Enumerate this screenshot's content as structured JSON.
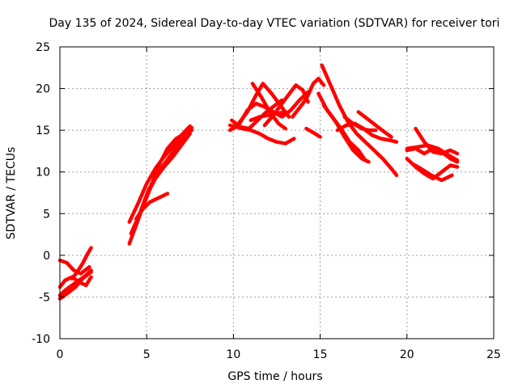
{
  "chart_data": {
    "type": "line",
    "title": "Day 135 of 2024, Sidereal Day-to-day VTEC variation (SDTVAR) for receiver tori",
    "xlabel": "GPS time / hours",
    "ylabel": "SDTVAR / TECUs",
    "xlim": [
      0,
      25
    ],
    "ylim": [
      -10,
      25
    ],
    "xticks": [
      0,
      5,
      10,
      15,
      20,
      25
    ],
    "yticks": [
      -10,
      -5,
      0,
      5,
      10,
      15,
      20,
      25
    ],
    "xtick_labels": [
      "0",
      "5",
      "10",
      "15",
      "20",
      "25"
    ],
    "ytick_labels": [
      "-10",
      "-5",
      "0",
      "5",
      "10",
      "15",
      "20",
      "25"
    ],
    "grid": true,
    "color": "#ff0000",
    "series": [
      {
        "x": [
          0.0,
          0.4,
          0.9,
          1.3,
          1.8
        ],
        "y": [
          -5.2,
          -4.6,
          -3.8,
          -2.8,
          -2.0
        ]
      },
      {
        "x": [
          0.0,
          0.3,
          0.7,
          1.1,
          1.5,
          1.8
        ],
        "y": [
          -3.8,
          -3.0,
          -2.6,
          -3.2,
          -3.6,
          -2.6
        ]
      },
      {
        "x": [
          0.0,
          0.3,
          0.7,
          1.1,
          1.5,
          1.8
        ],
        "y": [
          -4.8,
          -4.2,
          -3.6,
          -3.0,
          -2.4,
          -1.8
        ]
      },
      {
        "x": [
          0.0,
          0.4,
          0.8,
          1.2,
          1.7
        ],
        "y": [
          -0.6,
          -0.9,
          -1.8,
          -2.2,
          -1.4
        ]
      },
      {
        "x": [
          0.7,
          1.0,
          1.3,
          1.6,
          1.8
        ],
        "y": [
          -2.8,
          -2.0,
          -1.0,
          0.2,
          0.9
        ]
      },
      {
        "x": [
          4.0,
          4.5,
          5.0,
          5.5,
          6.0,
          6.5,
          7.0,
          7.5
        ],
        "y": [
          1.4,
          4.2,
          7.2,
          9.2,
          10.6,
          11.8,
          13.2,
          14.6
        ]
      },
      {
        "x": [
          4.1,
          4.6,
          5.1,
          5.6,
          6.1,
          6.6,
          7.1,
          7.6
        ],
        "y": [
          2.6,
          5.0,
          7.8,
          9.8,
          11.2,
          12.6,
          14.0,
          15.3
        ]
      },
      {
        "x": [
          4.0,
          4.5,
          5.0,
          5.5,
          6.0,
          6.5,
          7.0,
          7.5
        ],
        "y": [
          4.0,
          6.2,
          8.6,
          10.4,
          11.8,
          13.0,
          14.4,
          15.5
        ]
      },
      {
        "x": [
          4.2,
          4.7,
          5.2,
          5.7,
          6.2,
          6.7,
          7.2,
          7.6
        ],
        "y": [
          3.0,
          5.4,
          8.0,
          10.8,
          12.8,
          14.0,
          14.6,
          15.0
        ]
      },
      {
        "x": [
          4.4,
          4.8,
          5.2,
          5.6,
          6.0,
          6.2
        ],
        "y": [
          4.4,
          5.6,
          6.4,
          6.8,
          7.2,
          7.4
        ]
      },
      {
        "x": [
          9.8,
          10.3,
          10.8,
          11.3,
          11.8,
          12.3,
          12.8,
          13.3,
          13.8,
          14.3
        ],
        "y": [
          15.0,
          15.6,
          17.4,
          18.2,
          17.8,
          17.2,
          16.6,
          17.4,
          18.6,
          19.6
        ]
      },
      {
        "x": [
          9.8,
          10.5,
          11.0,
          11.5,
          12.0,
          12.5,
          13.0,
          13.5
        ],
        "y": [
          15.6,
          15.2,
          15.0,
          14.6,
          14.0,
          13.6,
          13.4,
          14.0
        ]
      },
      {
        "x": [
          9.9,
          10.4,
          10.9,
          11.4,
          11.9,
          12.4,
          12.8
        ],
        "y": [
          16.2,
          15.4,
          15.2,
          16.2,
          17.2,
          18.0,
          18.6
        ]
      },
      {
        "x": [
          10.3,
          10.8,
          11.3,
          11.7,
          12.2,
          12.7,
          13.2
        ],
        "y": [
          15.8,
          17.2,
          19.2,
          20.6,
          19.4,
          18.0,
          16.6
        ]
      },
      {
        "x": [
          11.1,
          11.6,
          12.1,
          12.6,
          13.0
        ],
        "y": [
          20.6,
          19.0,
          17.2,
          15.8,
          15.2
        ]
      },
      {
        "x": [
          11.8,
          12.3,
          12.8,
          13.3,
          13.6,
          14.0,
          14.3
        ],
        "y": [
          15.6,
          16.8,
          18.2,
          19.6,
          20.4,
          19.8,
          18.4
        ]
      },
      {
        "x": [
          11.0,
          11.5,
          12.0,
          12.5,
          13.0
        ],
        "y": [
          16.2,
          16.6,
          16.8,
          17.0,
          17.2
        ]
      },
      {
        "x": [
          13.4,
          13.7,
          14.0,
          14.3,
          14.6,
          14.9,
          15.2
        ],
        "y": [
          16.6,
          17.4,
          18.2,
          19.2,
          20.6,
          21.2,
          20.4
        ]
      },
      {
        "x": [
          14.2,
          14.7,
          15.0
        ],
        "y": [
          15.2,
          14.6,
          14.2
        ]
      },
      {
        "x": [
          15.1,
          15.6,
          16.1,
          16.6,
          17.1,
          17.6,
          18.1,
          18.6,
          19.1,
          19.4
        ],
        "y": [
          22.8,
          20.4,
          18.0,
          16.0,
          14.6,
          13.6,
          12.6,
          11.6,
          10.4,
          9.6
        ]
      },
      {
        "x": [
          14.9,
          15.4,
          15.9,
          16.4,
          16.9,
          17.4,
          17.8
        ],
        "y": [
          19.4,
          17.4,
          16.0,
          14.2,
          12.6,
          11.6,
          11.2
        ]
      },
      {
        "x": [
          15.2,
          15.7,
          16.2,
          16.7,
          17.2,
          17.6
        ],
        "y": [
          18.0,
          16.6,
          15.2,
          13.6,
          12.6,
          11.4
        ]
      },
      {
        "x": [
          16.0,
          16.5,
          17.0,
          17.5,
          18.0,
          18.5,
          19.0,
          19.4
        ],
        "y": [
          15.0,
          15.6,
          15.8,
          15.2,
          14.4,
          14.0,
          13.8,
          13.6
        ]
      },
      {
        "x": [
          17.2,
          17.7,
          18.2,
          18.7,
          19.1
        ],
        "y": [
          17.2,
          16.4,
          15.6,
          14.8,
          14.2
        ]
      },
      {
        "x": [
          16.4,
          16.9,
          17.4,
          17.8,
          18.2
        ],
        "y": [
          16.6,
          15.8,
          15.2,
          15.0,
          15.0
        ]
      },
      {
        "x": [
          20.0,
          20.5,
          21.0,
          21.5,
          22.0,
          22.5,
          22.9
        ],
        "y": [
          12.6,
          12.8,
          12.2,
          12.8,
          12.4,
          11.6,
          11.2
        ]
      },
      {
        "x": [
          20.0,
          20.5,
          21.0,
          21.5,
          22.0,
          22.5,
          22.9
        ],
        "y": [
          11.6,
          10.6,
          9.8,
          9.2,
          10.0,
          10.8,
          10.6
        ]
      },
      {
        "x": [
          20.5,
          21.0,
          21.5,
          22.0,
          22.5,
          22.9
        ],
        "y": [
          15.2,
          13.6,
          12.4,
          12.2,
          12.6,
          12.2
        ]
      },
      {
        "x": [
          20.0,
          20.6,
          21.2,
          21.8,
          22.4,
          22.9
        ],
        "y": [
          12.8,
          13.0,
          13.2,
          12.8,
          12.0,
          11.4
        ]
      },
      {
        "x": [
          20.3,
          20.8,
          21.4,
          22.0,
          22.6
        ],
        "y": [
          11.0,
          10.4,
          9.6,
          9.0,
          9.6
        ]
      }
    ]
  }
}
